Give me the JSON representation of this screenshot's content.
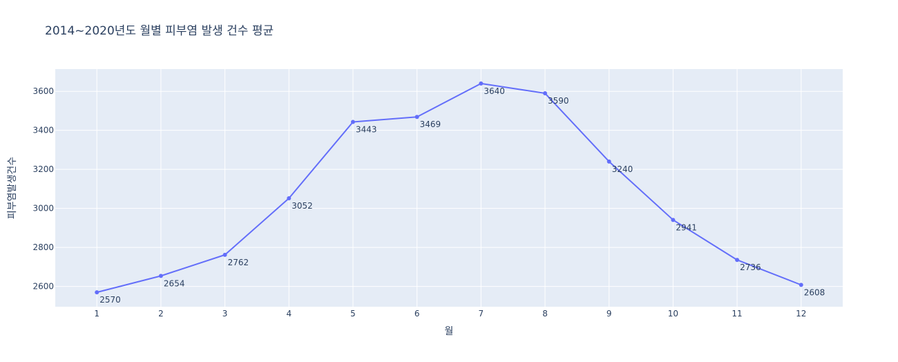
{
  "chart_data": {
    "type": "line",
    "title": "2014~2020년도 월별 피부염 발생 건수 평균",
    "xlabel": "월",
    "ylabel": "피부염발생건수",
    "x": [
      1,
      2,
      3,
      4,
      5,
      6,
      7,
      8,
      9,
      10,
      11,
      12
    ],
    "x_tick_labels": [
      "1",
      "2",
      "3",
      "4",
      "5",
      "6",
      "7",
      "8",
      "9",
      "10",
      "11",
      "12"
    ],
    "y_tick_values": [
      2600,
      2800,
      3000,
      3200,
      3400,
      3600
    ],
    "y_tick_labels": [
      "2600",
      "2800",
      "3000",
      "3200",
      "3400",
      "3600"
    ],
    "xlim": [
      0.35,
      12.65
    ],
    "ylim": [
      2496,
      3714
    ],
    "grid": true,
    "series": [
      {
        "values": [
          2570,
          2654,
          2762,
          3052,
          3443,
          3469,
          3640,
          3590,
          3240,
          2941,
          2736,
          2608
        ],
        "labels": [
          "2570",
          "2654",
          "2762",
          "3052",
          "3443",
          "3469",
          "3640",
          "3590",
          "3240",
          "2941",
          "2736",
          "2608"
        ],
        "color": "#636efa",
        "mode": "lines+markers+text"
      }
    ],
    "plot_background": "#e5ecf6",
    "grid_color": "#ffffff",
    "text_color": "#2a3f5f"
  }
}
